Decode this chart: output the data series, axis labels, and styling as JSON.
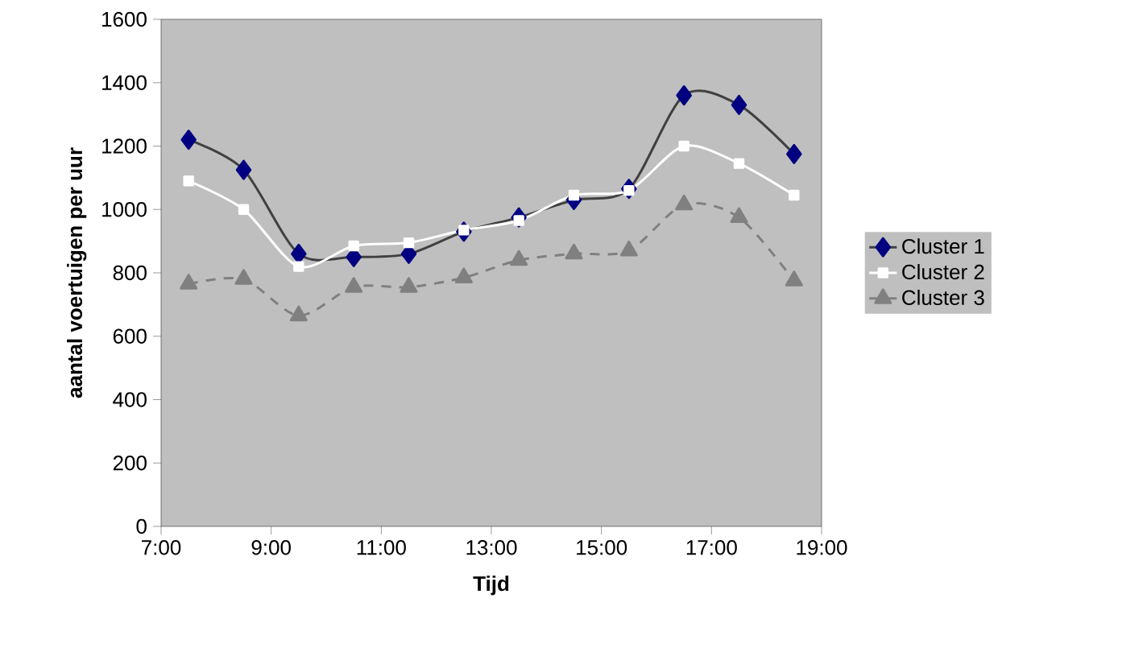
{
  "chart_data": {
    "type": "line",
    "xlabel": "Tijd",
    "ylabel": "aantal voertuigen per uur",
    "x": [
      7.5,
      8.5,
      9.5,
      10.5,
      11.5,
      12.5,
      13.5,
      14.5,
      15.5,
      16.5,
      17.5,
      18.5
    ],
    "series": [
      {
        "name": "Cluster 1",
        "color": "#000080",
        "marker": "diamond",
        "line_style": "solid",
        "values": [
          1220,
          1125,
          860,
          850,
          860,
          930,
          975,
          1030,
          1065,
          1360,
          1330,
          1175
        ]
      },
      {
        "name": "Cluster 2",
        "color": "#ffffff",
        "marker": "square",
        "line_style": "solid",
        "values": [
          1090,
          1000,
          820,
          885,
          895,
          935,
          965,
          1045,
          1060,
          1200,
          1145,
          1045
        ]
      },
      {
        "name": "Cluster 3",
        "color": "#808080",
        "marker": "triangle",
        "line_style": "dashed",
        "values": [
          765,
          780,
          665,
          755,
          755,
          785,
          840,
          860,
          870,
          1015,
          975,
          775
        ]
      }
    ],
    "xlim": [
      7,
      19
    ],
    "xticks": [
      {
        "value": 7,
        "label": "7:00"
      },
      {
        "value": 9,
        "label": "9:00"
      },
      {
        "value": 11,
        "label": "11:00"
      },
      {
        "value": 13,
        "label": "13:00"
      },
      {
        "value": 15,
        "label": "15:00"
      },
      {
        "value": 17,
        "label": "17:00"
      },
      {
        "value": 19,
        "label": "19:00"
      }
    ],
    "ylim": [
      0,
      1600
    ],
    "yticks": [
      0,
      200,
      400,
      600,
      800,
      1000,
      1200,
      1400,
      1600
    ],
    "grid": false,
    "legend": "right"
  }
}
